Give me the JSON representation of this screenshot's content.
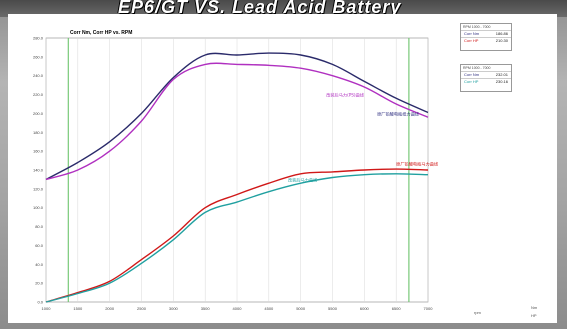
{
  "banner": {
    "title": "EP6/GT VS. Lead Acid Battery"
  },
  "chart_data": {
    "type": "line",
    "title": "Corr Nm, Corr HP vs. RPM",
    "x": [
      1000,
      1500,
      2000,
      2500,
      3000,
      3500,
      4000,
      4500,
      5000,
      5500,
      6000,
      6500,
      7000
    ],
    "xlim": [
      1000,
      7000
    ],
    "ylim": [
      0,
      280
    ],
    "x_ticks": [
      "1000",
      "1500",
      "2000",
      "2500",
      "3000",
      "3500",
      "4000",
      "4500",
      "5000",
      "5500",
      "6000",
      "6500",
      "7000"
    ],
    "y_ticks": [
      "0.0",
      "20.0",
      "40.0",
      "60.0",
      "80.0",
      "100.0",
      "120.0",
      "140.0",
      "160.0",
      "180.0",
      "200.0",
      "220.0",
      "240.0",
      "260.0",
      "280.0"
    ],
    "grid": "vertical",
    "vlines": [
      1350,
      6700
    ],
    "x_unit": "rpm",
    "series": [
      {
        "group": "torque",
        "color": "#2a2a6a",
        "values": [
          130,
          148,
          170,
          200,
          238,
          262,
          262,
          264,
          262,
          252,
          234,
          216,
          201
        ]
      },
      {
        "group": "torque",
        "color": "#b030c0",
        "values": [
          130,
          140,
          160,
          192,
          236,
          252,
          252,
          251,
          248,
          240,
          228,
          210,
          196
        ]
      },
      {
        "group": "power",
        "color": "#d01818",
        "values": [
          0,
          10,
          22,
          45,
          70,
          100,
          114,
          126,
          136,
          138,
          140,
          141,
          140
        ]
      },
      {
        "group": "power",
        "color": "#20a0a0",
        "values": [
          0,
          9,
          20,
          41,
          66,
          95,
          106,
          117,
          126,
          132,
          135,
          136,
          135
        ]
      }
    ],
    "annotations": [
      {
        "text": "改装后马力(PS)曲线",
        "color": "#b030c0",
        "x": 5400,
        "y": 218
      },
      {
        "text": "原厂铅酸电瓶扭力曲线",
        "color": "#303080",
        "x": 6200,
        "y": 198
      },
      {
        "text": "原厂铅酸电瓶马力曲线",
        "color": "#d01818",
        "x": 6500,
        "y": 145
      },
      {
        "text": "改装后马力曲线",
        "color": "#20a0a0",
        "x": 4800,
        "y": 128
      }
    ]
  },
  "legend_top": {
    "header": "RPM 1000 - 7000",
    "rows": [
      {
        "name": "Corr Nm",
        "value": "186.86",
        "color": "#303080"
      },
      {
        "name": "Corr HP",
        "value": "210.30",
        "color": "#d01818"
      }
    ]
  },
  "legend_bottom": {
    "header": "RPM 1000 - 7000",
    "rows": [
      {
        "name": "Corr Nm",
        "value": "232.01",
        "color": "#303080"
      },
      {
        "name": "Corr HP",
        "value": "230.16",
        "color": "#20a0a0"
      }
    ]
  },
  "side_labels": [
    "Nm",
    "HP"
  ]
}
